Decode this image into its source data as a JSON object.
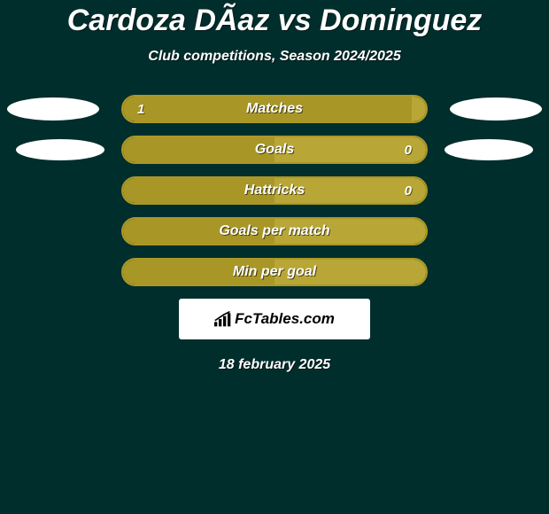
{
  "background_color": "#002e2c",
  "title": "Cardoza DÃ­az vs Dominguez",
  "subtitle": "Club competitions, Season 2024/2025",
  "date": "18 february 2025",
  "bar_color_left": "#a89627",
  "bar_color_right": "#b8a637",
  "bar_border_color": "#ab9826",
  "ellipse_color": "#ffffff",
  "rows": [
    {
      "label": "Matches",
      "left_value": "1",
      "right_value": "",
      "left_width_pct": 100,
      "show_left_ellipse": true,
      "show_right_ellipse": true,
      "ellipse_variant": 1
    },
    {
      "label": "Goals",
      "left_value": "",
      "right_value": "0",
      "left_width_pct": 50,
      "show_left_ellipse": true,
      "show_right_ellipse": true,
      "ellipse_variant": 2
    },
    {
      "label": "Hattricks",
      "left_value": "",
      "right_value": "0",
      "left_width_pct": 50,
      "show_left_ellipse": false,
      "show_right_ellipse": false
    },
    {
      "label": "Goals per match",
      "left_value": "",
      "right_value": "",
      "left_width_pct": 50,
      "show_left_ellipse": false,
      "show_right_ellipse": false
    },
    {
      "label": "Min per goal",
      "left_value": "",
      "right_value": "",
      "left_width_pct": 50,
      "show_left_ellipse": false,
      "show_right_ellipse": false
    }
  ],
  "badge": {
    "text": "FcTables.com"
  }
}
